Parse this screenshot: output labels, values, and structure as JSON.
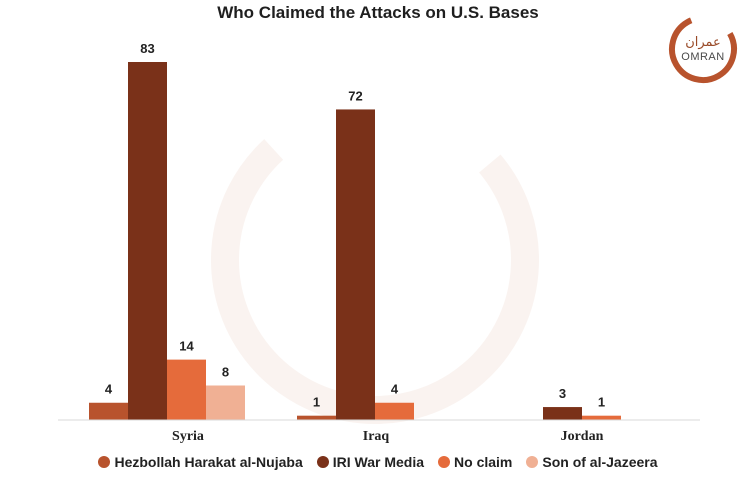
{
  "title": "Who Claimed the Attacks on U.S. Bases",
  "logo": {
    "arabic": "عمران",
    "english": "OMRAN"
  },
  "colors": {
    "Hezbollah Harakat al-Nujaba": "#b8532d",
    "IRI War Media": "#7a3119",
    "No claim": "#e56b3b",
    "Son of al-Jazeera": "#f0b094",
    "logo": "#b8532d"
  },
  "chart_data": {
    "type": "bar",
    "title": "Who Claimed the Attacks on U.S. Bases",
    "categories": [
      "Syria",
      "Iraq",
      "Jordan"
    ],
    "series": [
      {
        "name": "Hezbollah Harakat al-Nujaba",
        "values": [
          4,
          1,
          null
        ]
      },
      {
        "name": "IRI War Media",
        "values": [
          83,
          72,
          3
        ]
      },
      {
        "name": "No claim",
        "values": [
          14,
          4,
          1
        ]
      },
      {
        "name": "Son of al-Jazeera",
        "values": [
          8,
          null,
          null
        ]
      }
    ],
    "ylim": [
      0,
      83
    ],
    "grid": false,
    "legend": "bottom"
  }
}
